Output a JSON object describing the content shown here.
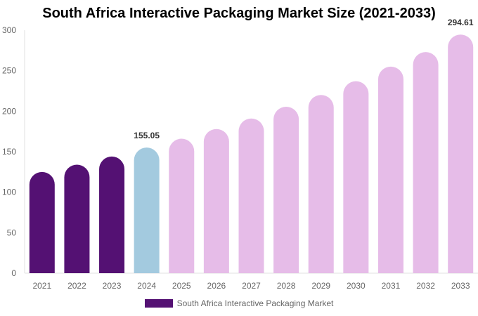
{
  "chart_data": {
    "type": "bar",
    "title": "South Africa Interactive Packaging Market Size (2021-2033)",
    "categories": [
      "2021",
      "2022",
      "2023",
      "2024",
      "2025",
      "2026",
      "2027",
      "2028",
      "2029",
      "2030",
      "2031",
      "2032",
      "2033"
    ],
    "series": [
      {
        "name": "South Africa Interactive Packaging Market",
        "values": [
          125,
          134,
          144,
          155.05,
          166,
          178,
          191,
          205.5,
          220,
          237,
          255,
          273,
          294.61
        ]
      }
    ],
    "data_labels": {
      "3": "155.05",
      "12": "294.61"
    },
    "ylim": [
      0,
      300
    ],
    "yticks": [
      0,
      50,
      100,
      150,
      200,
      250,
      300
    ],
    "grid": false,
    "legend": "bottom",
    "colors": {
      "historical": "#541173",
      "current": "#a3cadf",
      "forecast": "#e6bce8"
    },
    "color_groups": [
      "historical",
      "historical",
      "historical",
      "current",
      "forecast",
      "forecast",
      "forecast",
      "forecast",
      "forecast",
      "forecast",
      "forecast",
      "forecast",
      "forecast"
    ]
  }
}
